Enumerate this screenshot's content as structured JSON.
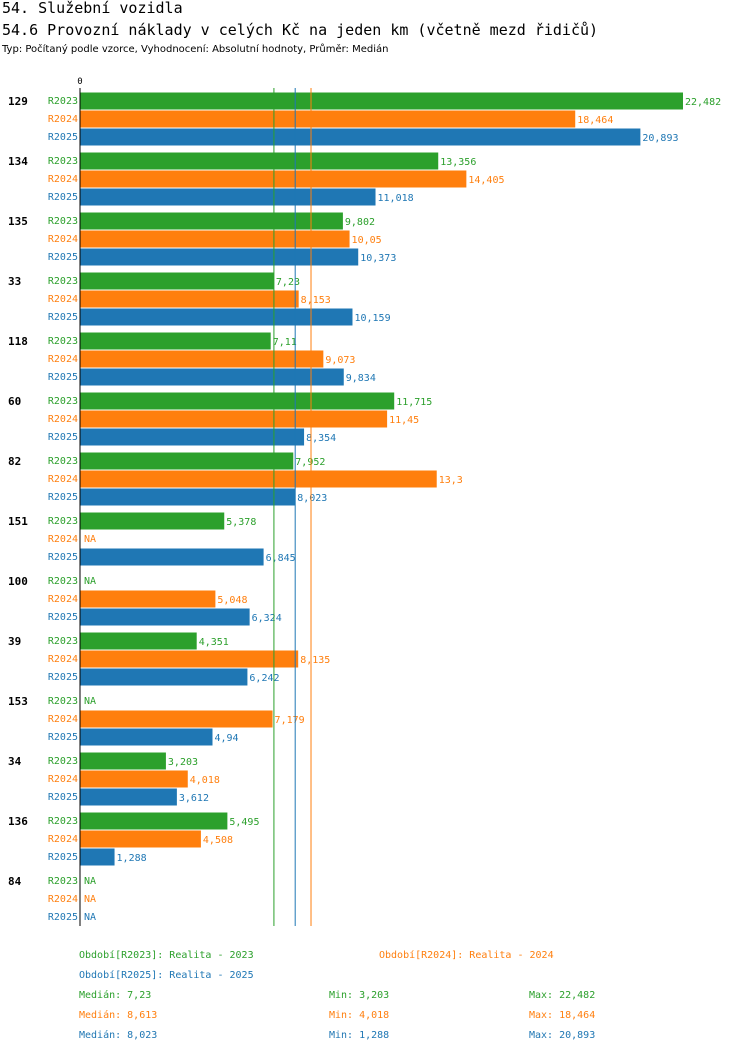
{
  "header": {
    "title": "54. Služební vozidla",
    "subtitle": "54.6 Provozní náklady v celých Kč na jeden km (včetně mezd řidičů)",
    "meta": "Typ: Počítaný podle vzorce, Vyhodnocení: Absolutní hodnoty, Průměr: Medián"
  },
  "colors": {
    "R2023": "#2ca02c",
    "R2024": "#ff7f0e",
    "R2025": "#1f77b4"
  },
  "chart_data": {
    "type": "bar",
    "orientation": "horizontal",
    "axis_zero_label": "0",
    "xlim": [
      0,
      22.482
    ],
    "series_names": [
      "R2023",
      "R2024",
      "R2025"
    ],
    "na_label": "NA",
    "groups": [
      {
        "label": "129",
        "values": [
          22.482,
          18.464,
          20.893
        ],
        "labels": [
          "22,482",
          "18,464",
          "20,893"
        ]
      },
      {
        "label": "134",
        "values": [
          13.356,
          14.405,
          11.018
        ],
        "labels": [
          "13,356",
          "14,405",
          "11,018"
        ]
      },
      {
        "label": "135",
        "values": [
          9.802,
          10.05,
          10.373
        ],
        "labels": [
          "9,802",
          "10,05",
          "10,373"
        ]
      },
      {
        "label": "33",
        "values": [
          7.23,
          8.153,
          10.159
        ],
        "labels": [
          "7,23",
          "8,153",
          "10,159"
        ]
      },
      {
        "label": "118",
        "values": [
          7.11,
          9.073,
          9.834
        ],
        "labels": [
          "7,11",
          "9,073",
          "9,834"
        ]
      },
      {
        "label": "60",
        "values": [
          11.715,
          11.45,
          8.354
        ],
        "labels": [
          "11,715",
          "11,45",
          "8,354"
        ]
      },
      {
        "label": "82",
        "values": [
          7.952,
          13.3,
          8.023
        ],
        "labels": [
          "7,952",
          "13,3",
          "8,023"
        ]
      },
      {
        "label": "151",
        "values": [
          5.378,
          null,
          6.845
        ],
        "labels": [
          "5,378",
          "NA",
          "6,845"
        ]
      },
      {
        "label": "100",
        "values": [
          null,
          5.048,
          6.324
        ],
        "labels": [
          "NA",
          "5,048",
          "6,324"
        ]
      },
      {
        "label": "39",
        "values": [
          4.351,
          8.135,
          6.242
        ],
        "labels": [
          "4,351",
          "8,135",
          "6,242"
        ]
      },
      {
        "label": "153",
        "values": [
          null,
          7.179,
          4.94
        ],
        "labels": [
          "NA",
          "7,179",
          "4,94"
        ]
      },
      {
        "label": "34",
        "values": [
          3.203,
          4.018,
          3.612
        ],
        "labels": [
          "3,203",
          "4,018",
          "3,612"
        ]
      },
      {
        "label": "136",
        "values": [
          5.495,
          4.508,
          1.288
        ],
        "labels": [
          "5,495",
          "4,508",
          "1,288"
        ]
      },
      {
        "label": "84",
        "values": [
          null,
          null,
          null
        ],
        "labels": [
          "NA",
          "NA",
          "NA"
        ]
      }
    ],
    "medians": [
      7.23,
      8.613,
      8.023
    ]
  },
  "legend": {
    "periods": [
      "Období[R2023]: Realita - 2023",
      "Období[R2024]: Realita - 2024",
      "Období[R2025]: Realita - 2025"
    ],
    "stats": [
      {
        "median": "Medián: 7,23",
        "min": "Min: 3,203",
        "max": "Max: 22,482"
      },
      {
        "median": "Medián: 8,613",
        "min": "Min: 4,018",
        "max": "Max: 18,464"
      },
      {
        "median": "Medián: 8,023",
        "min": "Min: 1,288",
        "max": "Max: 20,893"
      }
    ]
  }
}
